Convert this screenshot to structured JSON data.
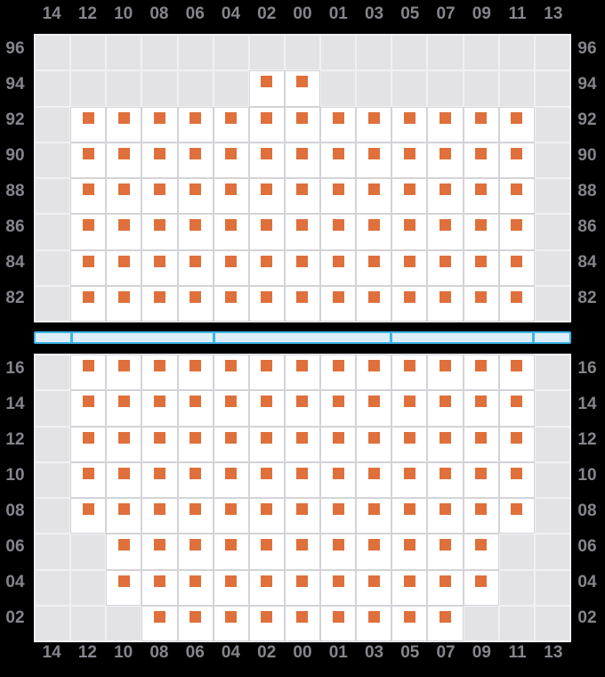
{
  "chart_data": {
    "type": "heatmap",
    "description": "Two-panel availability matrix; 1 = white cell containing an orange square marker, 0 = gray empty cell",
    "columns": [
      "14",
      "12",
      "10",
      "08",
      "06",
      "04",
      "02",
      "00",
      "01",
      "03",
      "05",
      "07",
      "09",
      "11",
      "13"
    ],
    "panels": [
      {
        "name": "top",
        "rows": [
          {
            "label": "96",
            "cells": [
              0,
              0,
              0,
              0,
              0,
              0,
              0,
              0,
              0,
              0,
              0,
              0,
              0,
              0,
              0
            ]
          },
          {
            "label": "94",
            "cells": [
              0,
              0,
              0,
              0,
              0,
              0,
              1,
              1,
              0,
              0,
              0,
              0,
              0,
              0,
              0
            ]
          },
          {
            "label": "92",
            "cells": [
              0,
              1,
              1,
              1,
              1,
              1,
              1,
              1,
              1,
              1,
              1,
              1,
              1,
              1,
              0
            ]
          },
          {
            "label": "90",
            "cells": [
              0,
              1,
              1,
              1,
              1,
              1,
              1,
              1,
              1,
              1,
              1,
              1,
              1,
              1,
              0
            ]
          },
          {
            "label": "88",
            "cells": [
              0,
              1,
              1,
              1,
              1,
              1,
              1,
              1,
              1,
              1,
              1,
              1,
              1,
              1,
              0
            ]
          },
          {
            "label": "86",
            "cells": [
              0,
              1,
              1,
              1,
              1,
              1,
              1,
              1,
              1,
              1,
              1,
              1,
              1,
              1,
              0
            ]
          },
          {
            "label": "84",
            "cells": [
              0,
              1,
              1,
              1,
              1,
              1,
              1,
              1,
              1,
              1,
              1,
              1,
              1,
              1,
              0
            ]
          },
          {
            "label": "82",
            "cells": [
              0,
              1,
              1,
              1,
              1,
              1,
              1,
              1,
              1,
              1,
              1,
              1,
              1,
              1,
              0
            ]
          }
        ]
      },
      {
        "name": "bottom",
        "rows": [
          {
            "label": "16",
            "cells": [
              0,
              1,
              1,
              1,
              1,
              1,
              1,
              1,
              1,
              1,
              1,
              1,
              1,
              1,
              0
            ]
          },
          {
            "label": "14",
            "cells": [
              0,
              1,
              1,
              1,
              1,
              1,
              1,
              1,
              1,
              1,
              1,
              1,
              1,
              1,
              0
            ]
          },
          {
            "label": "12",
            "cells": [
              0,
              1,
              1,
              1,
              1,
              1,
              1,
              1,
              1,
              1,
              1,
              1,
              1,
              1,
              0
            ]
          },
          {
            "label": "10",
            "cells": [
              0,
              1,
              1,
              1,
              1,
              1,
              1,
              1,
              1,
              1,
              1,
              1,
              1,
              1,
              0
            ]
          },
          {
            "label": "08",
            "cells": [
              0,
              1,
              1,
              1,
              1,
              1,
              1,
              1,
              1,
              1,
              1,
              1,
              1,
              1,
              0
            ]
          },
          {
            "label": "06",
            "cells": [
              0,
              0,
              1,
              1,
              1,
              1,
              1,
              1,
              1,
              1,
              1,
              1,
              1,
              0,
              0
            ]
          },
          {
            "label": "04",
            "cells": [
              0,
              0,
              1,
              1,
              1,
              1,
              1,
              1,
              1,
              1,
              1,
              1,
              1,
              0,
              0
            ]
          },
          {
            "label": "02",
            "cells": [
              0,
              0,
              0,
              1,
              1,
              1,
              1,
              1,
              1,
              1,
              1,
              1,
              0,
              0,
              0
            ]
          }
        ]
      }
    ],
    "axis_label_sides": "row labels shown on both left and right; column labels shown on both top and bottom",
    "grid": true,
    "legend": "none"
  },
  "scrollbar": {
    "segments": [
      1,
      4,
      5,
      4,
      1
    ]
  },
  "colors": {
    "background": "#000000",
    "cell_empty": "#e3e3e6",
    "cell_data": "#ffffff",
    "gridline": "#d3d3d8",
    "frame": "#f1f1f4",
    "marker": "#df703b",
    "label": "#85858d",
    "scrollbar_fill": "#ddeefa",
    "scrollbar_border": "#3fb4e6"
  }
}
